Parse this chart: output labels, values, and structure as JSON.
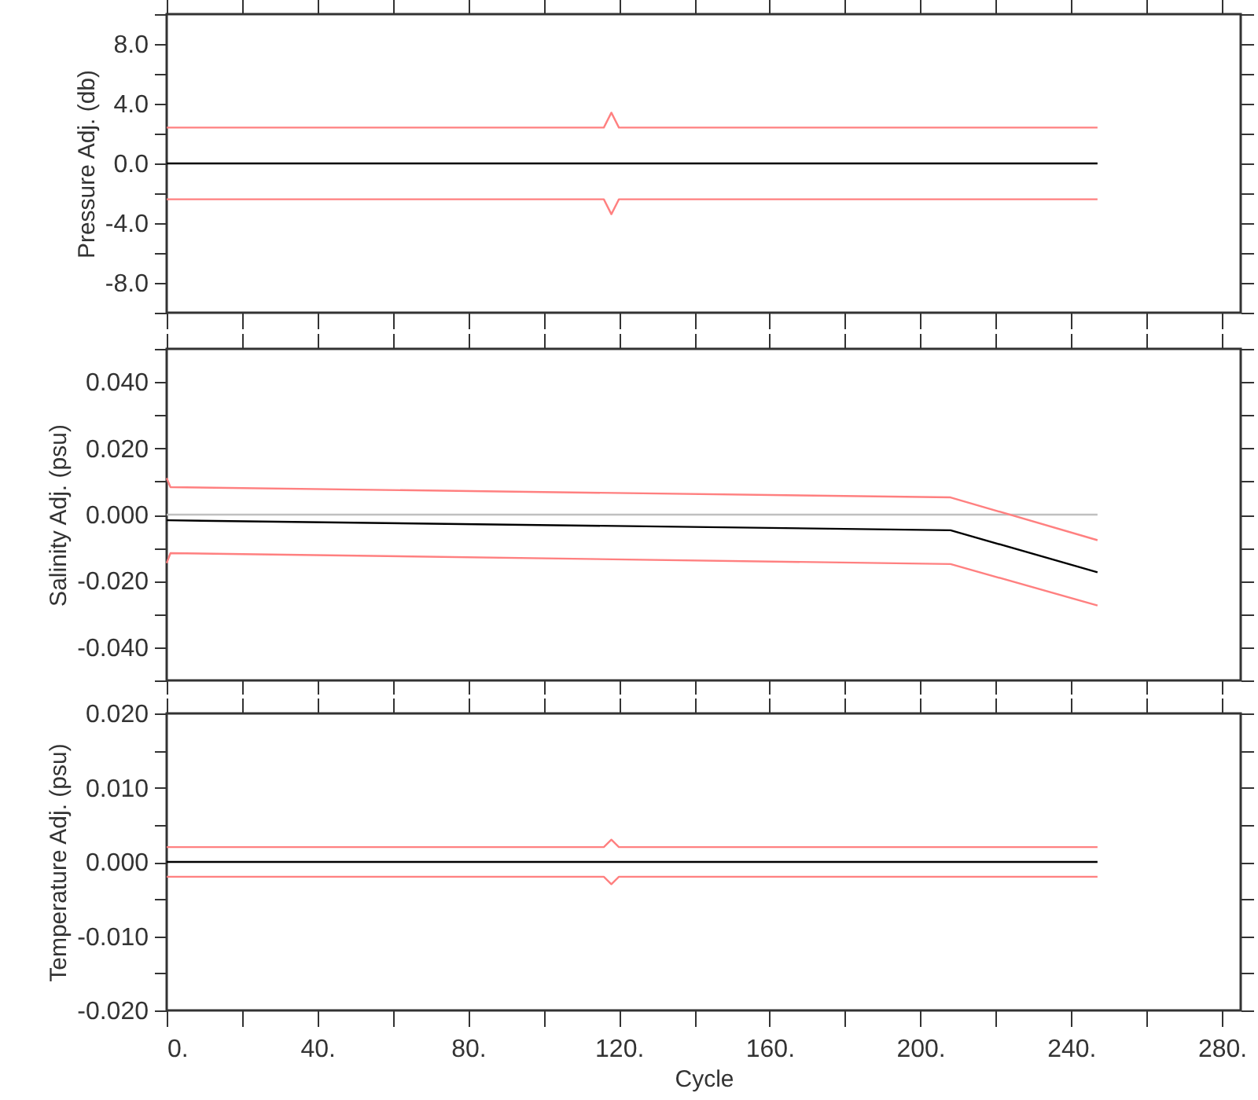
{
  "chart_data": [
    {
      "type": "line",
      "ylabel": "Pressure Adj. (db)",
      "xlim": [
        0,
        285
      ],
      "ylim": [
        -10,
        10
      ],
      "tick_labels": "y",
      "xticks": [
        {
          "value": 0,
          "label": null
        },
        {
          "value": 20,
          "label": null
        },
        {
          "value": 40,
          "label": null
        },
        {
          "value": 60,
          "label": null
        },
        {
          "value": 80,
          "label": null
        },
        {
          "value": 100,
          "label": null
        },
        {
          "value": 120,
          "label": null
        },
        {
          "value": 140,
          "label": null
        },
        {
          "value": 160,
          "label": null
        },
        {
          "value": 180,
          "label": null
        },
        {
          "value": 200,
          "label": null
        },
        {
          "value": 220,
          "label": null
        },
        {
          "value": 240,
          "label": null
        },
        {
          "value": 260,
          "label": null
        },
        {
          "value": 280,
          "label": null
        }
      ],
      "yticks": [
        {
          "value": -10,
          "label": null
        },
        {
          "value": -8,
          "label": "-8.0"
        },
        {
          "value": -6,
          "label": null
        },
        {
          "value": -4,
          "label": "-4.0"
        },
        {
          "value": -2,
          "label": null
        },
        {
          "value": 0,
          "label": "0.0"
        },
        {
          "value": 2,
          "label": null
        },
        {
          "value": 4,
          "label": "4.0"
        },
        {
          "value": 6,
          "label": null
        },
        {
          "value": 8,
          "label": "8.0"
        },
        {
          "value": 10,
          "label": null
        }
      ],
      "series": [
        {
          "color": "#ff8080",
          "x": [
            0,
            116,
            118,
            120,
            247
          ],
          "values": [
            2.4,
            2.4,
            3.4,
            2.4,
            2.4
          ]
        },
        {
          "color": "#000000",
          "x": [
            0,
            247
          ],
          "values": [
            0,
            0
          ]
        },
        {
          "color": "#ff8080",
          "x": [
            0,
            116,
            118,
            120,
            247
          ],
          "values": [
            -2.4,
            -2.4,
            -3.4,
            -2.4,
            -2.4
          ]
        }
      ]
    },
    {
      "type": "line",
      "ylabel": "Salinity Adj. (psu)",
      "xlim": [
        0,
        285
      ],
      "ylim": [
        -0.05,
        0.05
      ],
      "tick_labels": "y",
      "xticks": [
        {
          "value": 0,
          "label": null
        },
        {
          "value": 20,
          "label": null
        },
        {
          "value": 40,
          "label": null
        },
        {
          "value": 60,
          "label": null
        },
        {
          "value": 80,
          "label": null
        },
        {
          "value": 100,
          "label": null
        },
        {
          "value": 120,
          "label": null
        },
        {
          "value": 140,
          "label": null
        },
        {
          "value": 160,
          "label": null
        },
        {
          "value": 180,
          "label": null
        },
        {
          "value": 200,
          "label": null
        },
        {
          "value": 220,
          "label": null
        },
        {
          "value": 240,
          "label": null
        },
        {
          "value": 260,
          "label": null
        },
        {
          "value": 280,
          "label": null
        }
      ],
      "yticks": [
        {
          "value": -0.05,
          "label": null
        },
        {
          "value": -0.04,
          "label": "-0.040"
        },
        {
          "value": -0.03,
          "label": null
        },
        {
          "value": -0.02,
          "label": "-0.020"
        },
        {
          "value": -0.01,
          "label": null
        },
        {
          "value": 0,
          "label": "0.000"
        },
        {
          "value": 0.01,
          "label": null
        },
        {
          "value": 0.02,
          "label": "0.020"
        },
        {
          "value": 0.03,
          "label": null
        },
        {
          "value": 0.04,
          "label": "0.040"
        },
        {
          "value": 0.05,
          "label": null
        }
      ],
      "series": [
        {
          "color": "#c0c0c0",
          "x": [
            0,
            247
          ],
          "values": [
            0,
            0
          ]
        },
        {
          "color": "#ff8080",
          "x": [
            0,
            1,
            208,
            247
          ],
          "values": [
            0.011,
            0.0083,
            0.0052,
            -0.0077
          ]
        },
        {
          "color": "#000000",
          "x": [
            0,
            208,
            247
          ],
          "values": [
            -0.0017,
            -0.0047,
            -0.0174
          ]
        },
        {
          "color": "#ff8080",
          "x": [
            0,
            1,
            208,
            247
          ],
          "values": [
            -0.0146,
            -0.0116,
            -0.0149,
            -0.0274
          ]
        }
      ]
    },
    {
      "type": "line",
      "ylabel": "Temperature Adj. (psu)",
      "xlabel": "Cycle",
      "xlim": [
        0,
        285
      ],
      "ylim": [
        -0.02,
        0.02
      ],
      "xticks": [
        {
          "value": 0,
          "label": "0."
        },
        {
          "value": 20,
          "label": null
        },
        {
          "value": 40,
          "label": "40."
        },
        {
          "value": 60,
          "label": null
        },
        {
          "value": 80,
          "label": "80."
        },
        {
          "value": 100,
          "label": null
        },
        {
          "value": 120,
          "label": "120."
        },
        {
          "value": 140,
          "label": null
        },
        {
          "value": 160,
          "label": "160."
        },
        {
          "value": 180,
          "label": null
        },
        {
          "value": 200,
          "label": "200."
        },
        {
          "value": 220,
          "label": null
        },
        {
          "value": 240,
          "label": "240."
        },
        {
          "value": 260,
          "label": null
        },
        {
          "value": 280,
          "label": "280."
        }
      ],
      "yticks": [
        {
          "value": -0.02,
          "label": "-0.020"
        },
        {
          "value": -0.015,
          "label": null
        },
        {
          "value": -0.01,
          "label": "-0.010"
        },
        {
          "value": -0.005,
          "label": null
        },
        {
          "value": 0,
          "label": "0.000"
        },
        {
          "value": 0.005,
          "label": null
        },
        {
          "value": 0.01,
          "label": "0.010"
        },
        {
          "value": 0.015,
          "label": null
        },
        {
          "value": 0.02,
          "label": "0.020"
        }
      ],
      "series": [
        {
          "color": "#ff8080",
          "x": [
            0,
            116,
            118,
            120,
            247
          ],
          "values": [
            0.002,
            0.002,
            0.003,
            0.002,
            0.002
          ]
        },
        {
          "color": "#000000",
          "x": [
            0,
            247
          ],
          "values": [
            0,
            0
          ]
        },
        {
          "color": "#ff8080",
          "x": [
            0,
            116,
            118,
            120,
            247
          ],
          "values": [
            -0.002,
            -0.002,
            -0.003,
            -0.002,
            -0.002
          ]
        }
      ]
    }
  ]
}
